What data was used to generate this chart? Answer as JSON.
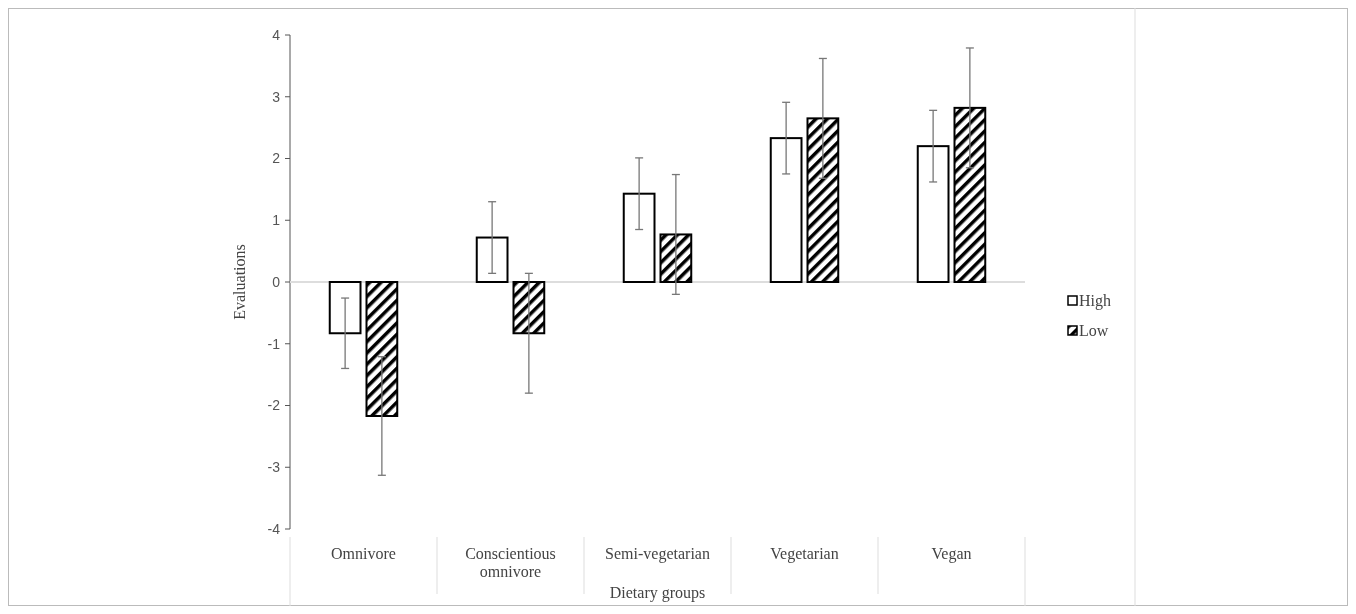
{
  "chart_data": {
    "type": "bar",
    "xlabel": "Dietary groups",
    "ylabel": "Evaluations",
    "categories": [
      "Omnivore",
      "Conscientious omnivore",
      "Semi-vegetarian",
      "Vegetarian",
      "Vegan"
    ],
    "series": [
      {
        "name": "High",
        "color": "#ffffff",
        "values": [
          -0.83,
          0.72,
          1.43,
          2.33,
          2.2
        ],
        "errors": [
          0.57,
          0.58,
          0.58,
          0.58,
          0.58
        ]
      },
      {
        "name": "Low",
        "color": "#000000",
        "values": [
          -2.17,
          -0.83,
          0.77,
          2.65,
          2.82
        ],
        "errors": [
          0.96,
          0.97,
          0.97,
          0.97,
          0.97
        ]
      }
    ],
    "ylim": [
      -4,
      4
    ],
    "yticks": [
      -4,
      -3,
      -2,
      -1,
      0,
      1,
      2,
      3,
      4
    ],
    "legend": "right"
  }
}
